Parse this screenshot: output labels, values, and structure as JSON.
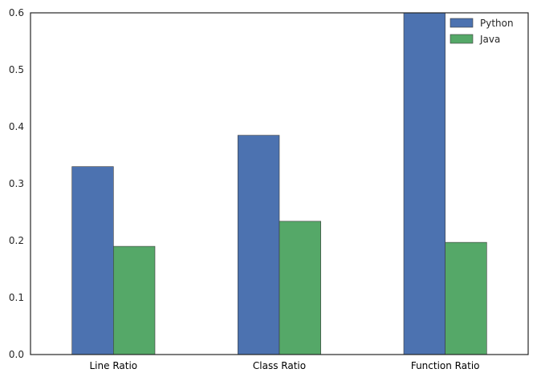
{
  "chart_data": {
    "type": "bar",
    "title": "",
    "xlabel": "",
    "ylabel": "",
    "categories": [
      "Line Ratio",
      "Class Ratio",
      "Function Ratio"
    ],
    "series": [
      {
        "name": "Python",
        "color": "#4c72b0",
        "values": [
          0.33,
          0.385,
          0.6
        ]
      },
      {
        "name": "Java",
        "color": "#55a868",
        "values": [
          0.19,
          0.234,
          0.197
        ]
      }
    ],
    "ylim": [
      0,
      0.6
    ],
    "yticks": [
      "0.0",
      "0.1",
      "0.2",
      "0.3",
      "0.4",
      "0.5",
      "0.6"
    ],
    "grid": false,
    "legend_position": "top-right"
  }
}
